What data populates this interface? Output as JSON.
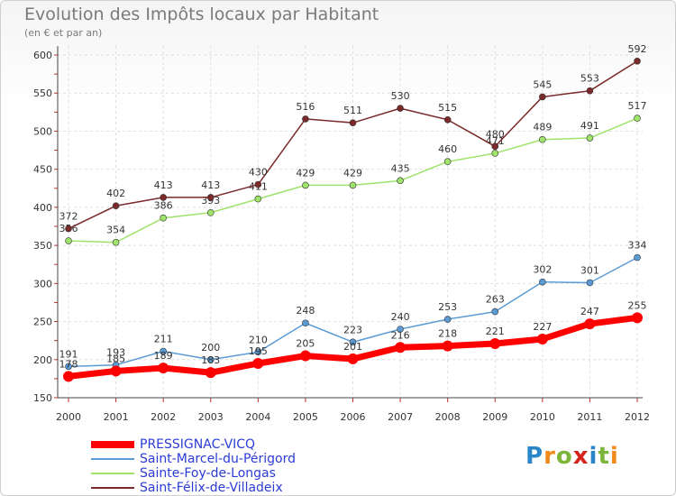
{
  "title": "Evolution des Impôts locaux par Habitant",
  "subtitle": "(en € et par an)",
  "logo_text": "Proxiti",
  "logo_colors": [
    "#2a86c9",
    "#f08a1c",
    "#7db53a",
    "#d4241b",
    "#2a86c9",
    "#7db53a",
    "#f08a1c"
  ],
  "chart_data": {
    "type": "line",
    "x": [
      "2000",
      "2001",
      "2002",
      "2003",
      "2004",
      "2005",
      "2006",
      "2007",
      "2008",
      "2009",
      "2010",
      "2011",
      "2012"
    ],
    "ylim": [
      150,
      600
    ],
    "yticks": [
      150,
      200,
      250,
      300,
      350,
      400,
      450,
      500,
      550,
      600
    ],
    "grid": true,
    "legend_position": "bottom-left",
    "series": [
      {
        "name": "PRESSIGNAC-VICQ",
        "color": "#ff0000",
        "width": "thick",
        "values": [
          178,
          185,
          189,
          183,
          195,
          205,
          201,
          216,
          218,
          221,
          227,
          247,
          255
        ]
      },
      {
        "name": "Saint-Marcel-du-Périgord",
        "color": "#5b9bd5",
        "width": "thin",
        "values": [
          191,
          193,
          211,
          200,
          210,
          248,
          223,
          240,
          253,
          263,
          302,
          301,
          334
        ]
      },
      {
        "name": "Sainte-Foy-de-Longas",
        "color": "#9ee36a",
        "width": "thin",
        "values": [
          356,
          354,
          386,
          393,
          411,
          429,
          429,
          435,
          460,
          471,
          489,
          491,
          517
        ]
      },
      {
        "name": "Saint-Félix-de-Villadeix",
        "color": "#7a2a2a",
        "width": "thin",
        "values": [
          372,
          402,
          413,
          413,
          430,
          516,
          511,
          530,
          515,
          480,
          545,
          553,
          592
        ]
      }
    ]
  }
}
